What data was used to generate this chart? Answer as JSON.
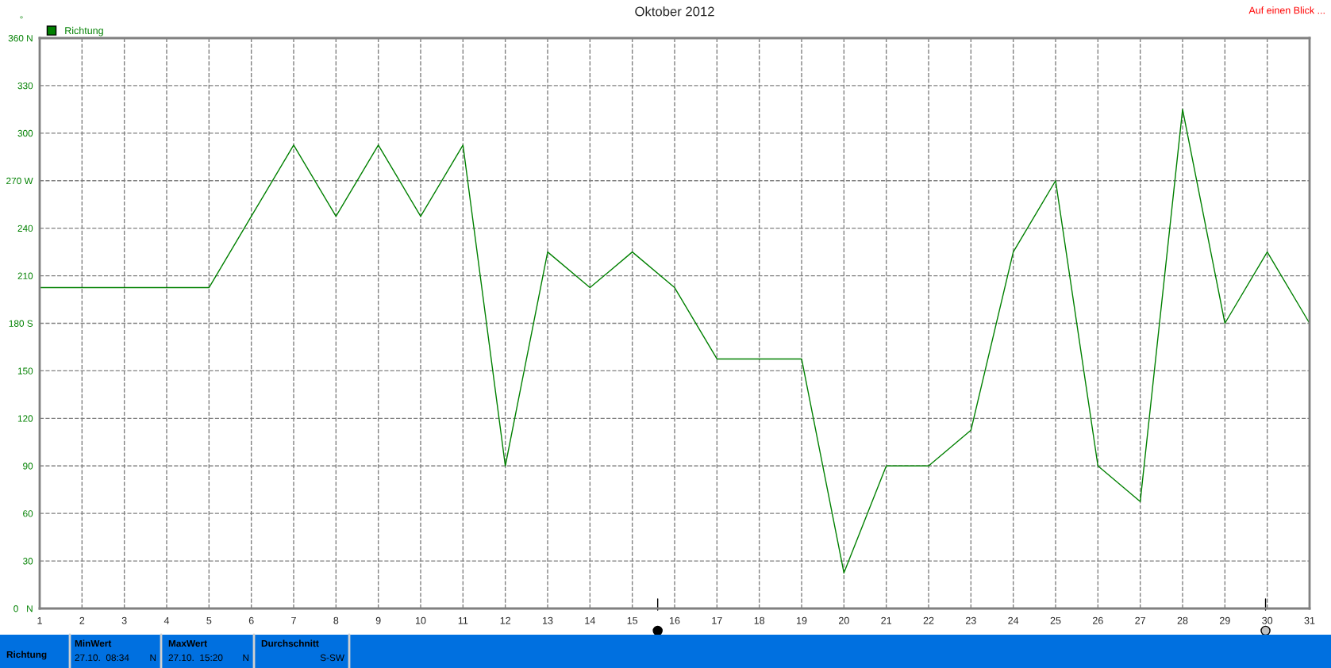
{
  "chart_data": {
    "type": "line",
    "title": "Oktober 2012",
    "ylabel": "°",
    "x": [
      1,
      2,
      3,
      4,
      5,
      6,
      7,
      8,
      9,
      10,
      11,
      12,
      13,
      14,
      15,
      16,
      17,
      18,
      19,
      20,
      21,
      22,
      23,
      24,
      25,
      26,
      27,
      28,
      29,
      30,
      31
    ],
    "series": [
      {
        "name": "Richtung",
        "color": "#008000",
        "values": [
          202.5,
          202.5,
          202.5,
          202.5,
          202.5,
          247.5,
          292.5,
          247.5,
          292.5,
          247.5,
          292.5,
          90,
          225,
          202.5,
          225,
          202.5,
          157.5,
          157.5,
          157.5,
          22.5,
          90,
          90,
          112.5,
          225,
          270,
          90,
          67.5,
          315,
          180,
          225,
          180
        ]
      }
    ],
    "xlim": [
      1,
      31
    ],
    "xticks": [
      1,
      2,
      3,
      4,
      5,
      6,
      7,
      8,
      9,
      10,
      11,
      12,
      13,
      14,
      15,
      16,
      17,
      18,
      19,
      20,
      21,
      22,
      23,
      24,
      25,
      26,
      27,
      28,
      29,
      30,
      31
    ],
    "ylim": [
      0,
      360
    ],
    "yticks": [
      {
        "value": 0,
        "label": "0   N"
      },
      30,
      60,
      90,
      120,
      150,
      {
        "value": 180,
        "label": "180 S"
      },
      210,
      240,
      {
        "value": 270,
        "label": "270 W"
      },
      300,
      330,
      {
        "value": 360,
        "label": "360 N"
      }
    ],
    "grid": true,
    "legend": "top left",
    "marker": "none",
    "line_style": "solid",
    "annotations": [
      "Auf einen Blick ...",
      "Richtung",
      "MinWert",
      "27.10.  08:34",
      "N",
      "MaxWert",
      "27.10.  15:20",
      "N",
      "Durchschnitt",
      "S-SW"
    ]
  }
}
